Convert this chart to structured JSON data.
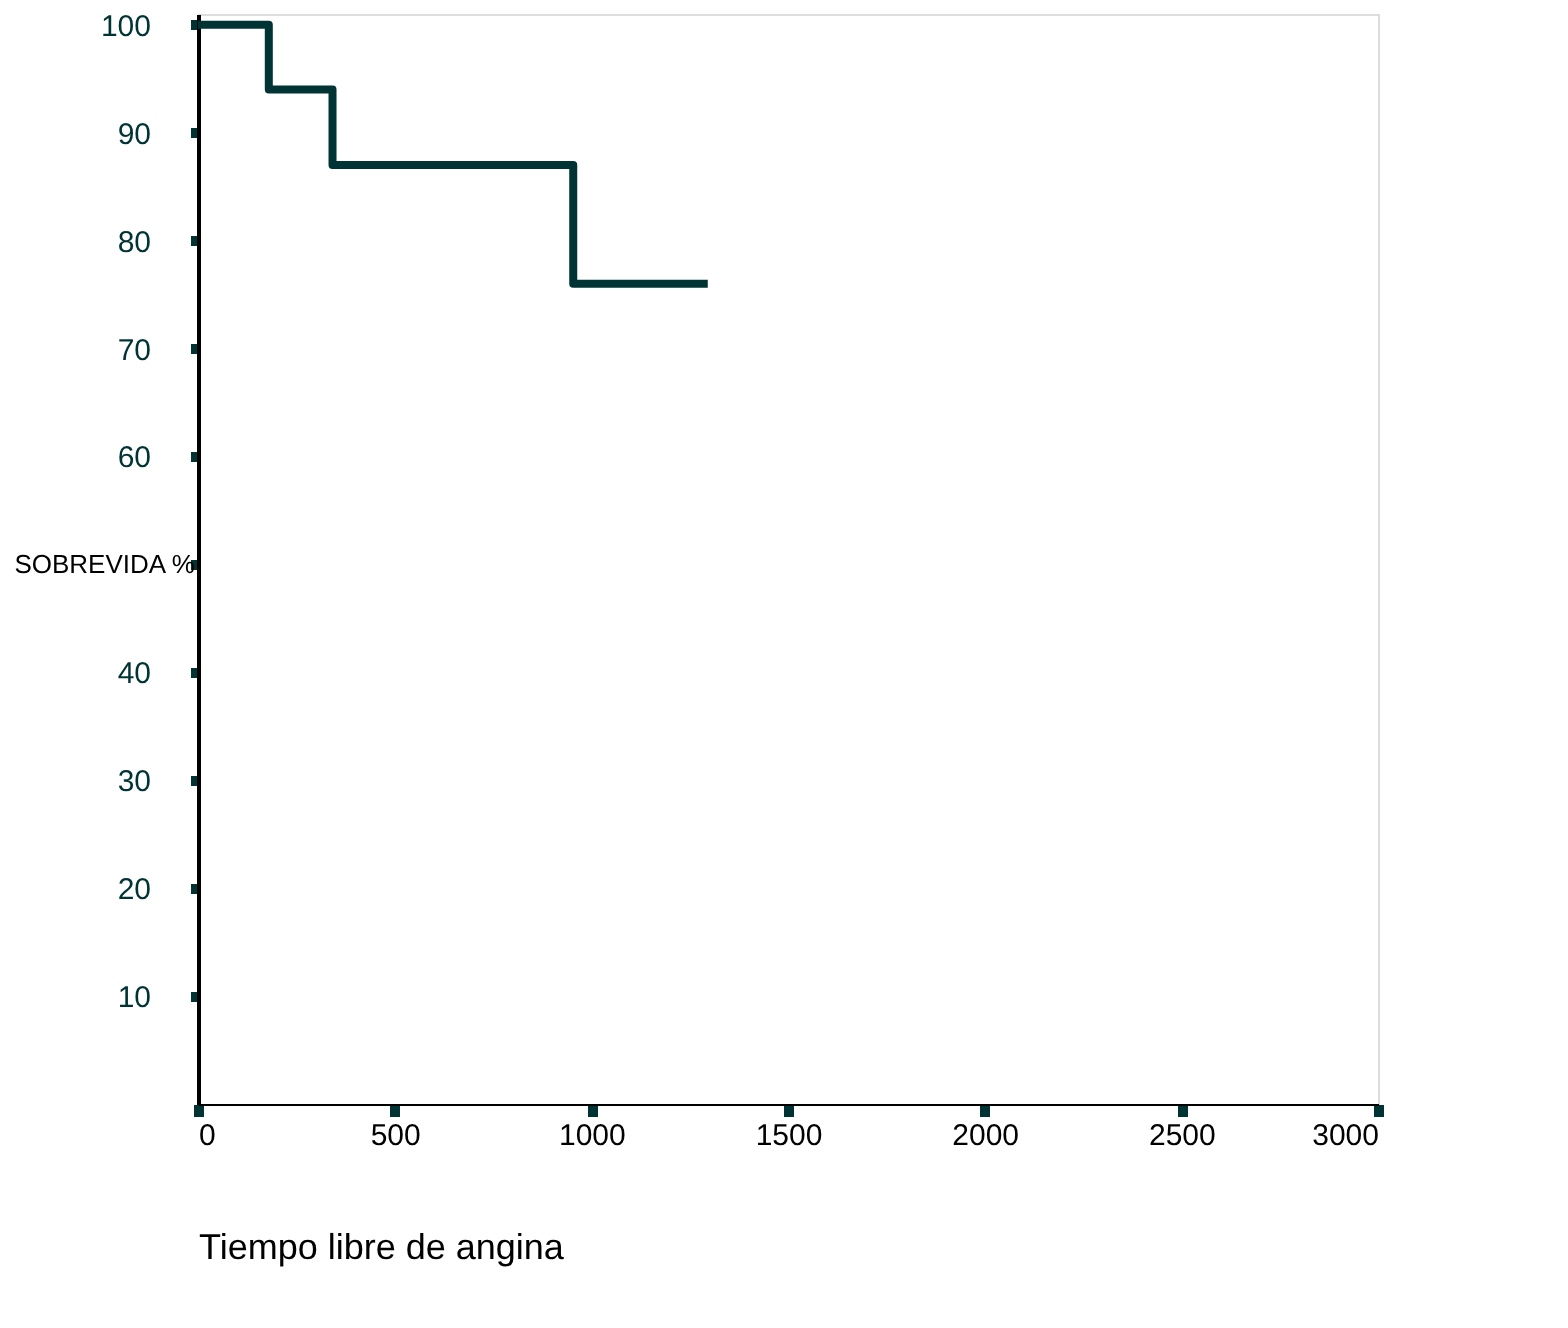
{
  "chart_data": {
    "type": "step",
    "xlabel": "Tiempo libre de angina",
    "ylabel": "SOBREVIDA %",
    "x": [
      0,
      180,
      342,
      954,
      1296
    ],
    "series": [
      {
        "color": "#003333",
        "values": [
          100,
          94,
          87,
          76,
          76
        ]
      }
    ],
    "xlim": [
      0,
      3000
    ],
    "xticks": [
      0,
      500,
      1000,
      1500,
      2000,
      2500,
      3000
    ],
    "ylim": [
      0,
      101
    ],
    "yticks": [
      10,
      20,
      30,
      40,
      {
        "value": 50,
        "label": null
      },
      60,
      70,
      80,
      90,
      100
    ],
    "grid": false,
    "marker": "none",
    "line_style": "solid"
  }
}
